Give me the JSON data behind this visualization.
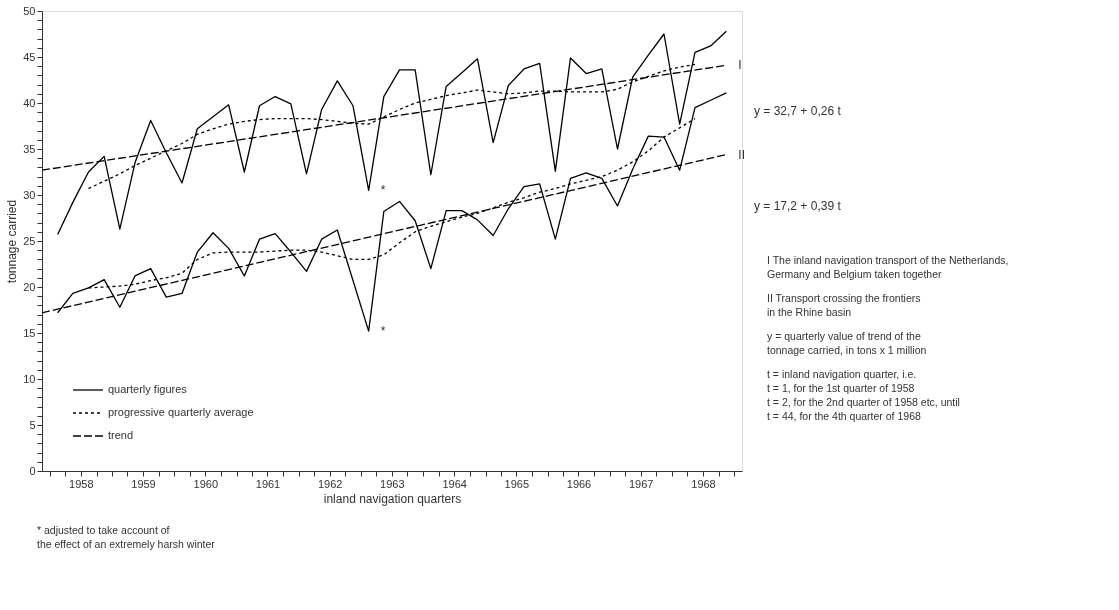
{
  "chart_data": {
    "type": "line",
    "xlabel": "inland navigation quarters",
    "ylabel": "tonnage carried",
    "x": [
      "1958-02-15",
      "1958-05-15",
      "1958-08-15",
      "1958-11-15",
      "1959-02-15",
      "1959-05-15",
      "1959-08-15",
      "1959-11-15",
      "1960-02-15",
      "1960-05-15",
      "1960-08-15",
      "1960-11-15",
      "1961-02-15",
      "1961-05-15",
      "1961-08-15",
      "1961-11-15",
      "1962-02-15",
      "1962-05-15",
      "1962-08-15",
      "1962-11-15",
      "1963-02-15",
      "1963-05-15",
      "1963-08-15",
      "1963-11-15",
      "1964-02-15",
      "1964-05-15",
      "1964-08-15",
      "1964-11-15",
      "1965-02-15",
      "1965-05-15",
      "1965-08-15",
      "1965-11-15",
      "1966-02-15",
      "1966-05-15",
      "1966-08-15",
      "1966-11-15",
      "1967-02-15",
      "1967-05-15",
      "1967-08-15",
      "1967-11-15",
      "1968-02-15",
      "1968-05-15",
      "1968-08-15",
      "1968-11-15"
    ],
    "xlim": [
      "1957-11-15",
      "1969-02-15"
    ],
    "ylim": [
      0,
      50
    ],
    "xticks": [
      {
        "value": "1958-01-01",
        "label": null
      },
      {
        "value": "1958-04-01",
        "label": null
      },
      {
        "value": "1958-07-01",
        "label": "1958"
      },
      {
        "value": "1958-10-01",
        "label": null
      },
      {
        "value": "1959-01-01",
        "label": null
      },
      {
        "value": "1959-04-01",
        "label": null
      },
      {
        "value": "1959-07-01",
        "label": "1959"
      },
      {
        "value": "1959-10-01",
        "label": null
      },
      {
        "value": "1960-01-01",
        "label": null
      },
      {
        "value": "1960-04-01",
        "label": null
      },
      {
        "value": "1960-07-01",
        "label": "1960"
      },
      {
        "value": "1960-10-01",
        "label": null
      },
      {
        "value": "1961-01-01",
        "label": null
      },
      {
        "value": "1961-04-01",
        "label": null
      },
      {
        "value": "1961-07-01",
        "label": "1961"
      },
      {
        "value": "1961-10-01",
        "label": null
      },
      {
        "value": "1962-01-01",
        "label": null
      },
      {
        "value": "1962-04-01",
        "label": null
      },
      {
        "value": "1962-07-01",
        "label": "1962"
      },
      {
        "value": "1962-10-01",
        "label": null
      },
      {
        "value": "1963-01-01",
        "label": null
      },
      {
        "value": "1963-04-01",
        "label": null
      },
      {
        "value": "1963-07-01",
        "label": "1963"
      },
      {
        "value": "1963-10-01",
        "label": null
      },
      {
        "value": "1964-01-01",
        "label": null
      },
      {
        "value": "1964-04-01",
        "label": null
      },
      {
        "value": "1964-07-01",
        "label": "1964"
      },
      {
        "value": "1964-10-01",
        "label": null
      },
      {
        "value": "1965-01-01",
        "label": null
      },
      {
        "value": "1965-04-01",
        "label": null
      },
      {
        "value": "1965-07-01",
        "label": "1965"
      },
      {
        "value": "1965-10-01",
        "label": null
      },
      {
        "value": "1966-01-01",
        "label": null
      },
      {
        "value": "1966-04-01",
        "label": null
      },
      {
        "value": "1966-07-01",
        "label": "1966"
      },
      {
        "value": "1966-10-01",
        "label": null
      },
      {
        "value": "1967-01-01",
        "label": null
      },
      {
        "value": "1967-04-01",
        "label": null
      },
      {
        "value": "1967-07-01",
        "label": "1967"
      },
      {
        "value": "1967-10-01",
        "label": null
      },
      {
        "value": "1968-01-01",
        "label": null
      },
      {
        "value": "1968-04-01",
        "label": null
      },
      {
        "value": "1968-07-01",
        "label": "1968"
      },
      {
        "value": "1968-10-01",
        "label": null
      },
      {
        "value": "1969-01-01",
        "label": null
      }
    ],
    "yticks": [
      0,
      {
        "value": 1,
        "label": null
      },
      {
        "value": 2,
        "label": null
      },
      {
        "value": 3,
        "label": null
      },
      {
        "value": 4,
        "label": null
      },
      5,
      {
        "value": 6,
        "label": null
      },
      {
        "value": 7,
        "label": null
      },
      {
        "value": 8,
        "label": null
      },
      {
        "value": 9,
        "label": null
      },
      10,
      {
        "value": 11,
        "label": null
      },
      {
        "value": 12,
        "label": null
      },
      {
        "value": 13,
        "label": null
      },
      {
        "value": 14,
        "label": null
      },
      15,
      {
        "value": 16,
        "label": null
      },
      {
        "value": 17,
        "label": null
      },
      {
        "value": 18,
        "label": null
      },
      {
        "value": 19,
        "label": null
      },
      20,
      {
        "value": 21,
        "label": null
      },
      {
        "value": 22,
        "label": null
      },
      {
        "value": 23,
        "label": null
      },
      {
        "value": 24,
        "label": null
      },
      25,
      {
        "value": 26,
        "label": null
      },
      {
        "value": 27,
        "label": null
      },
      {
        "value": 28,
        "label": null
      },
      {
        "value": 29,
        "label": null
      },
      30,
      {
        "value": 31,
        "label": null
      },
      {
        "value": 32,
        "label": null
      },
      {
        "value": 33,
        "label": null
      },
      {
        "value": 34,
        "label": null
      },
      35,
      {
        "value": 36,
        "label": null
      },
      {
        "value": 37,
        "label": null
      },
      {
        "value": 38,
        "label": null
      },
      {
        "value": 39,
        "label": null
      },
      40,
      {
        "value": 41,
        "label": null
      },
      {
        "value": 42,
        "label": null
      },
      {
        "value": 43,
        "label": null
      },
      {
        "value": 44,
        "label": null
      },
      45,
      {
        "value": 46,
        "label": null
      },
      {
        "value": 47,
        "label": null
      },
      {
        "value": 48,
        "label": null
      },
      {
        "value": 49,
        "label": null
      },
      50
    ],
    "grid": false,
    "legend": "bottom left",
    "series": [
      {
        "name": "quarterly figures",
        "color": "#000000",
        "line_style": "solid",
        "values": [
          25.7,
          29.2,
          32.5,
          34.2,
          26.3,
          33.5,
          38.1,
          34.6,
          31.3,
          37.2,
          38.5,
          39.8,
          32.5,
          39.7,
          40.7,
          39.9,
          32.3,
          39.3,
          42.4,
          39.7,
          30.5,
          40.7,
          43.6,
          43.6,
          32.2,
          41.8,
          43.3,
          44.8,
          35.7,
          41.9,
          43.7,
          44.3,
          32.6,
          44.9,
          43.2,
          43.7,
          35.0,
          42.8,
          45.2,
          47.5,
          37.7,
          45.5,
          46.2,
          47.8
        ]
      },
      {
        "name": "progressive quarterly average",
        "color": "#000000",
        "line_style": "dotted",
        "x": [
          "1958-08-15",
          "1958-11-15",
          "1959-02-15",
          "1959-05-15",
          "1959-08-15",
          "1959-11-15",
          "1960-02-15",
          "1960-05-15",
          "1960-08-15",
          "1960-11-15",
          "1961-02-15",
          "1961-05-15",
          "1961-08-15",
          "1961-11-15",
          "1962-02-15",
          "1962-05-15",
          "1962-08-15",
          "1962-11-15",
          "1963-02-15",
          "1963-05-15",
          "1963-08-15",
          "1963-11-15",
          "1964-02-15",
          "1964-05-15",
          "1964-08-15",
          "1964-11-15",
          "1965-02-15",
          "1965-05-15",
          "1965-08-15",
          "1965-11-15",
          "1966-02-15",
          "1966-05-15",
          "1966-08-15",
          "1966-11-15",
          "1967-02-15",
          "1967-05-15",
          "1967-08-15",
          "1967-11-15",
          "1968-02-15",
          "1968-05-15"
        ],
        "values": [
          30.7,
          31.5,
          32.3,
          33.2,
          34.0,
          34.8,
          35.6,
          36.6,
          37.2,
          37.7,
          38.0,
          38.2,
          38.3,
          38.3,
          38.3,
          38.2,
          38.0,
          37.8,
          37.7,
          38.5,
          39.3,
          40.0,
          40.4,
          40.8,
          41.1,
          41.4,
          41.2,
          41.0,
          41.1,
          41.3,
          41.3,
          41.2,
          41.2,
          41.2,
          41.5,
          42.3,
          42.9,
          43.5,
          43.9,
          44.2
        ]
      },
      {
        "name": "trend",
        "color": "#000000",
        "line_style": "dashed",
        "x": [
          "1957-11-15",
          "1968-11-15"
        ],
        "values": [
          32.7,
          44.1
        ]
      },
      {
        "color": "#000000",
        "line_style": "solid",
        "values": [
          17.2,
          19.3,
          19.9,
          20.8,
          17.8,
          21.2,
          22.0,
          18.9,
          19.3,
          23.8,
          25.9,
          24.2,
          21.2,
          25.2,
          25.8,
          23.8,
          21.7,
          25.2,
          26.2,
          20.7,
          15.2,
          28.2,
          29.3,
          27.2,
          22.0,
          28.3,
          28.3,
          27.3,
          25.6,
          28.5,
          30.9,
          31.2,
          25.2,
          31.8,
          32.4,
          31.8,
          28.8,
          32.8,
          36.4,
          36.3,
          32.7,
          39.5,
          40.3,
          41.1
        ]
      },
      {
        "color": "#000000",
        "line_style": "dotted",
        "x": [
          "1958-08-15",
          "1958-11-15",
          "1959-02-15",
          "1959-05-15",
          "1959-08-15",
          "1959-11-15",
          "1960-02-15",
          "1960-05-15",
          "1960-08-15",
          "1960-11-15",
          "1961-02-15",
          "1961-05-15",
          "1961-08-15",
          "1961-11-15",
          "1962-02-15",
          "1962-05-15",
          "1962-08-15",
          "1962-11-15",
          "1963-02-15",
          "1963-05-15",
          "1963-08-15",
          "1963-11-15",
          "1964-02-15",
          "1964-05-15",
          "1964-08-15",
          "1964-11-15",
          "1965-02-15",
          "1965-05-15",
          "1965-08-15",
          "1965-11-15",
          "1966-02-15",
          "1966-05-15",
          "1966-08-15",
          "1966-11-15",
          "1967-02-15",
          "1967-05-15",
          "1967-08-15",
          "1967-11-15",
          "1968-02-15",
          "1968-05-15"
        ],
        "values": [
          19.9,
          20.0,
          20.1,
          20.3,
          20.7,
          21.0,
          21.5,
          23.0,
          23.7,
          23.8,
          23.8,
          23.8,
          23.9,
          24.0,
          24.0,
          23.8,
          23.4,
          23.0,
          23.0,
          23.5,
          24.8,
          26.0,
          26.6,
          27.1,
          27.6,
          28.0,
          28.6,
          29.2,
          29.7,
          30.3,
          30.7,
          31.2,
          31.6,
          32.0,
          32.7,
          33.6,
          34.8,
          36.3,
          37.3,
          38.3
        ]
      },
      {
        "color": "#000000",
        "line_style": "dashed",
        "x": [
          "1957-11-15",
          "1968-11-15"
        ],
        "values": [
          17.2,
          34.4
        ]
      }
    ],
    "annotations": [
      {
        "text": "I",
        "x": "1968-11-15",
        "y": 44.1
      },
      {
        "text": "II",
        "x": "1968-11-15",
        "y": 34.4
      },
      "y = 32,7 + 0,26 t",
      "y = 17,2 + 0,39 t",
      {
        "text": "*",
        "x": "1963-02-15",
        "y": 30.5
      },
      {
        "text": "*",
        "x": "1963-02-15",
        "y": 15.2
      },
      "I   The inland navigation transport of the Netherlands,\n     Germany and Belgium taken together",
      "II  Transport crossing the frontiers\n     in the Rhine basin",
      "y = quarterly value of trend of the\n       tonnage carried, in tons x 1 million",
      "t = inland navigation quarter, i.e.\n       t =  1, for the 1st quarter of 1958\n       t =  2, for the 2nd quarter of 1958 etc, until\n       t = 44, for the 4th quarter of 1968",
      "* adjusted to take account of\nthe effect of an extremely harsh winter"
    ]
  }
}
